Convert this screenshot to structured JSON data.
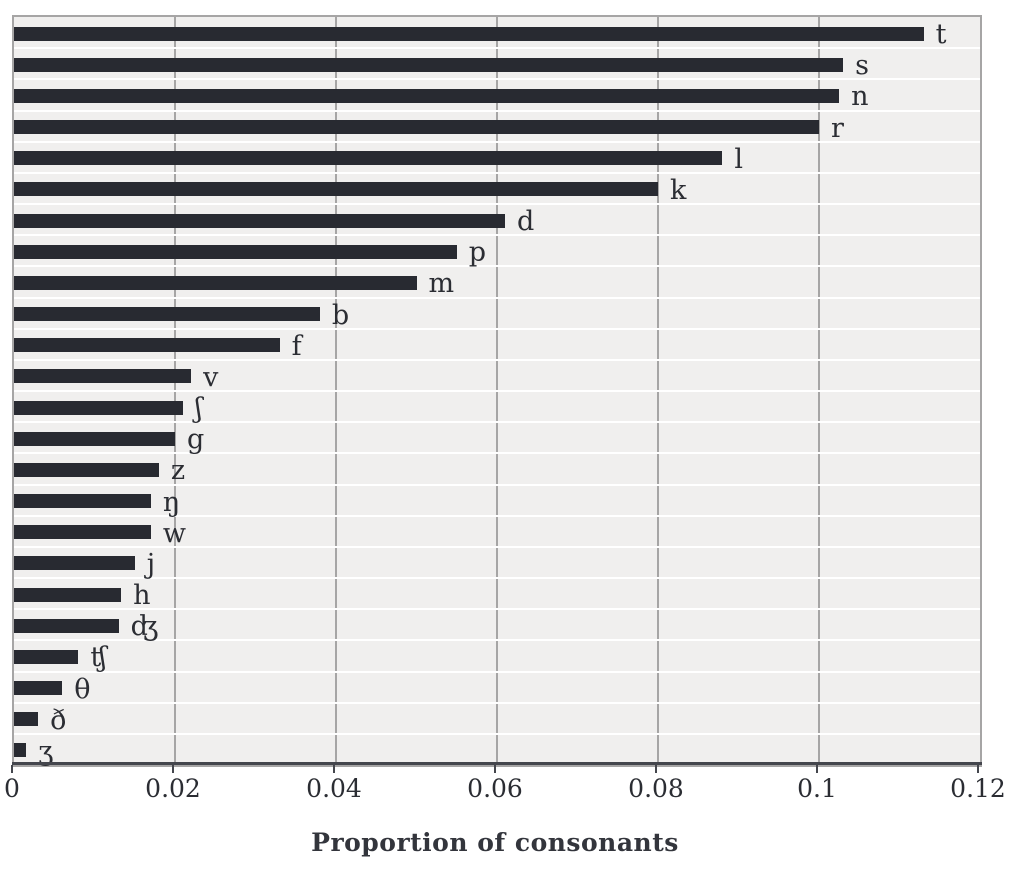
{
  "chart_data": {
    "type": "bar",
    "orientation": "horizontal",
    "title": "",
    "xlabel": "Proportion of consonants",
    "ylabel": "",
    "xlim": [
      0,
      0.12
    ],
    "x_tick_values": [
      0,
      0.02,
      0.04,
      0.06,
      0.08,
      0.1,
      0.12
    ],
    "x_tick_labels": [
      "0",
      "0.02",
      "0.04",
      "0.06",
      "0.08",
      "0.1",
      "0.12"
    ],
    "grid": "vertical gray lines at x ticks, white horizontal row separators",
    "legend": "none",
    "categories": [
      "t",
      "s",
      "n",
      "r",
      "l",
      "k",
      "d",
      "p",
      "m",
      "b",
      "f",
      "v",
      "ʃ",
      "g",
      "z",
      "ŋ",
      "w",
      "j",
      "h",
      "ʤ",
      "ʧ",
      "θ",
      "ð",
      "ʒ"
    ],
    "values": [
      0.113,
      0.103,
      0.1025,
      0.1,
      0.088,
      0.08,
      0.061,
      0.055,
      0.05,
      0.038,
      0.033,
      0.022,
      0.021,
      0.02,
      0.018,
      0.017,
      0.017,
      0.015,
      0.0133,
      0.013,
      0.008,
      0.006,
      0.003,
      0.0015
    ]
  },
  "colors": {
    "bar": "#282a31",
    "plot_background": "#f0efee",
    "vertical_gridline": "#a6a5a5",
    "horizontal_gridline": "#ffffff",
    "axis_line": "#44464d",
    "text": "#2b2d33",
    "page_background": "#ffffff"
  }
}
